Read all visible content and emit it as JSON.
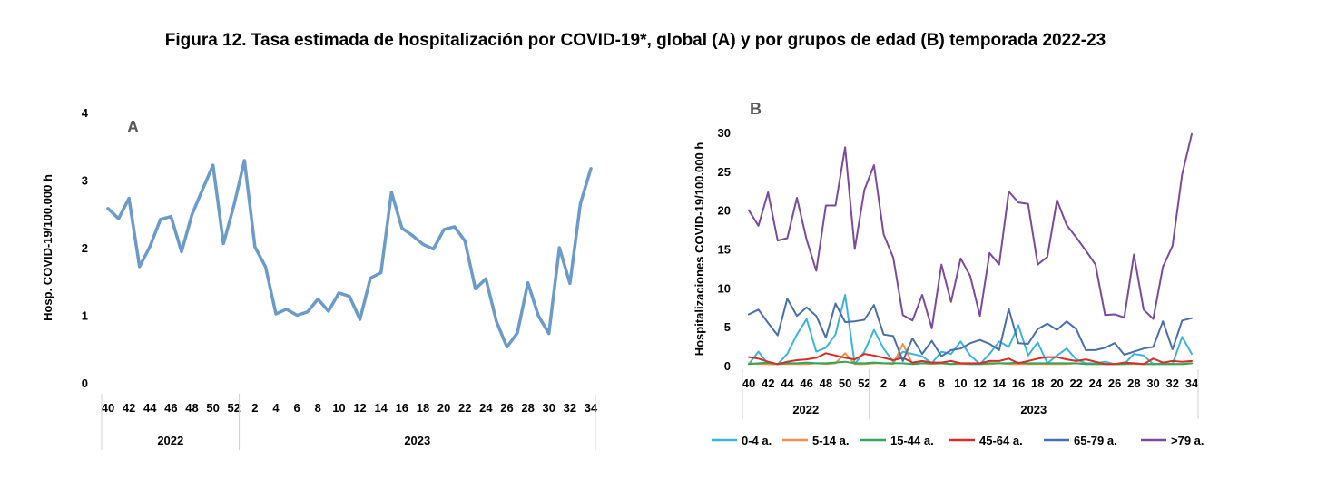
{
  "figure_title": "Figura 12. Tasa estimada de hospitalización por COVID-19*, global (A) y por grupos de edad (B) temporada 2022-23",
  "chart_data": [
    {
      "type": "line",
      "panel_label": "A",
      "ylabel": "Hosp. COVID-19/100.000 h",
      "ylim": [
        0,
        4
      ],
      "yticks": [
        0,
        1,
        2,
        3,
        4
      ],
      "weeks": [
        "40",
        "41",
        "42",
        "43",
        "44",
        "45",
        "46",
        "47",
        "48",
        "49",
        "50",
        "51",
        "52",
        "1",
        "2",
        "3",
        "4",
        "5",
        "6",
        "7",
        "8",
        "9",
        "10",
        "11",
        "12",
        "13",
        "14",
        "15",
        "16",
        "17",
        "18",
        "19",
        "20",
        "21",
        "22",
        "23",
        "24",
        "25",
        "26",
        "27",
        "28",
        "29",
        "30",
        "31",
        "32",
        "33",
        "34"
      ],
      "tick_labels": [
        "40",
        "42",
        "44",
        "46",
        "48",
        "50",
        "52",
        "2",
        "4",
        "6",
        "8",
        "10",
        "12",
        "14",
        "16",
        "18",
        "20",
        "22",
        "24",
        "26",
        "28",
        "30",
        "32",
        "34"
      ],
      "years": [
        {
          "label": "2022",
          "start": "40",
          "end": "52"
        },
        {
          "label": "2023",
          "start": "1",
          "end": "34"
        }
      ],
      "color": "#6b9bc8",
      "series": [
        {
          "name": "Global",
          "values": [
            2.58,
            2.43,
            2.73,
            1.72,
            2.02,
            2.42,
            2.46,
            1.94,
            2.49,
            2.86,
            3.22,
            2.06,
            2.63,
            3.29,
            2.01,
            1.72,
            1.02,
            1.09,
            1.0,
            1.05,
            1.24,
            1.06,
            1.33,
            1.28,
            0.94,
            1.55,
            1.63,
            2.82,
            2.29,
            2.18,
            2.05,
            1.98,
            2.27,
            2.31,
            2.1,
            1.39,
            1.54,
            0.91,
            0.53,
            0.74,
            1.48,
            0.99,
            0.73,
            2.0,
            1.47,
            2.65,
            3.17
          ]
        }
      ]
    },
    {
      "type": "line",
      "panel_label": "B",
      "ylabel": "Hospitalizaciones  COVID-19/100.000 h",
      "ylim": [
        0,
        30
      ],
      "yticks": [
        0,
        5,
        10,
        15,
        20,
        25,
        30
      ],
      "weeks": [
        "40",
        "41",
        "42",
        "43",
        "44",
        "45",
        "46",
        "47",
        "48",
        "49",
        "50",
        "51",
        "52",
        "1",
        "2",
        "3",
        "4",
        "5",
        "6",
        "7",
        "8",
        "9",
        "10",
        "11",
        "12",
        "13",
        "14",
        "15",
        "16",
        "17",
        "18",
        "19",
        "20",
        "21",
        "22",
        "23",
        "24",
        "25",
        "26",
        "27",
        "28",
        "29",
        "30",
        "31",
        "32",
        "33",
        "34"
      ],
      "tick_labels": [
        "40",
        "42",
        "44",
        "46",
        "48",
        "50",
        "52",
        "2",
        "4",
        "6",
        "8",
        "10",
        "12",
        "14",
        "16",
        "18",
        "20",
        "22",
        "24",
        "26",
        "28",
        "30",
        "32",
        "34"
      ],
      "years": [
        {
          "label": "2022",
          "start": "40",
          "end": "52"
        },
        {
          "label": "2023",
          "start": "1",
          "end": "34"
        }
      ],
      "series": [
        {
          "name": "0-4 a.",
          "color": "#3cb4d9",
          "values": [
            0.2,
            1.8,
            0.2,
            0.2,
            1.5,
            4.0,
            6.0,
            1.8,
            2.3,
            4.0,
            9.1,
            0.2,
            1.8,
            4.6,
            2.2,
            0.5,
            1.8,
            1.5,
            1.2,
            0.3,
            1.8,
            1.5,
            3.1,
            1.3,
            0.2,
            1.5,
            3.1,
            2.4,
            5.2,
            1.3,
            3.0,
            0.3,
            1.3,
            2.2,
            0.8,
            0.3,
            0.3,
            0.5,
            0.2,
            0.2,
            1.5,
            1.3,
            0.2,
            0.3,
            0.2,
            3.7,
            1.5
          ]
        },
        {
          "name": "5-14 a.",
          "color": "#f0904a",
          "values": [
            0.3,
            0.2,
            0.2,
            0.2,
            0.2,
            0.2,
            0.2,
            0.3,
            0.2,
            0.3,
            1.6,
            0.2,
            0.2,
            0.3,
            0.3,
            0.2,
            2.8,
            0.2,
            0.3,
            0.2,
            0.3,
            0.2,
            0.2,
            0.2,
            0.2,
            0.2,
            0.3,
            0.2,
            0.2,
            0.2,
            0.2,
            0.2,
            0.2,
            0.2,
            0.3,
            0.2,
            0.2,
            0.2,
            0.2,
            0.2,
            0.2,
            0.2,
            0.2,
            0.2,
            0.2,
            0.2,
            0.3
          ]
        },
        {
          "name": "15-44 a.",
          "color": "#2fa65a",
          "values": [
            0.2,
            0.3,
            0.4,
            0.2,
            0.3,
            0.3,
            0.4,
            0.3,
            0.3,
            0.4,
            0.5,
            0.3,
            0.3,
            0.4,
            0.3,
            0.3,
            0.3,
            0.2,
            0.3,
            0.3,
            0.3,
            0.2,
            0.3,
            0.2,
            0.2,
            0.3,
            0.3,
            0.3,
            0.4,
            0.3,
            0.3,
            0.3,
            0.3,
            0.3,
            0.3,
            0.2,
            0.2,
            0.2,
            0.2,
            0.2,
            0.3,
            0.2,
            0.2,
            0.2,
            0.2,
            0.2,
            0.3
          ]
        },
        {
          "name": "45-64 a.",
          "color": "#d42f2a",
          "values": [
            1.1,
            0.9,
            0.5,
            0.2,
            0.5,
            0.7,
            0.8,
            1.0,
            1.6,
            1.3,
            1.0,
            0.8,
            1.5,
            1.3,
            1.0,
            0.7,
            1.0,
            0.4,
            0.6,
            0.4,
            0.4,
            0.6,
            0.3,
            0.3,
            0.3,
            0.6,
            0.6,
            0.9,
            0.3,
            0.6,
            0.9,
            1.1,
            1.1,
            0.8,
            0.6,
            0.8,
            0.5,
            0.2,
            0.2,
            0.4,
            0.3,
            0.2,
            0.9,
            0.4,
            0.6,
            0.5,
            0.6
          ]
        },
        {
          "name": "65-79 a.",
          "color": "#4a6fa8",
          "values": [
            6.6,
            7.2,
            5.5,
            3.9,
            8.6,
            6.4,
            7.5,
            6.4,
            3.6,
            8.0,
            5.6,
            5.7,
            5.9,
            7.8,
            4.0,
            3.8,
            0.6,
            3.5,
            1.5,
            3.2,
            1.2,
            2.0,
            2.2,
            2.9,
            3.3,
            2.8,
            2.0,
            7.3,
            2.9,
            2.8,
            4.7,
            5.4,
            4.6,
            5.7,
            4.7,
            2.0,
            2.0,
            2.3,
            2.9,
            1.4,
            1.8,
            2.2,
            2.4,
            5.7,
            2.1,
            5.8,
            6.1
          ]
        },
        {
          "name": ">79 a.",
          "color": "#7a4b9c",
          "values": [
            20.0,
            18.0,
            22.3,
            16.1,
            16.4,
            21.6,
            16.2,
            12.2,
            20.6,
            20.6,
            28.1,
            15.0,
            22.6,
            25.8,
            16.9,
            13.9,
            6.5,
            5.8,
            9.1,
            4.8,
            13.0,
            8.2,
            13.8,
            11.5,
            6.4,
            14.5,
            13.0,
            22.4,
            21.0,
            20.8,
            13.0,
            14.0,
            21.3,
            18.1,
            16.5,
            14.8,
            13.0,
            6.5,
            6.6,
            6.2,
            14.3,
            7.2,
            6.0,
            12.7,
            15.4,
            24.6,
            29.8
          ]
        }
      ]
    }
  ]
}
